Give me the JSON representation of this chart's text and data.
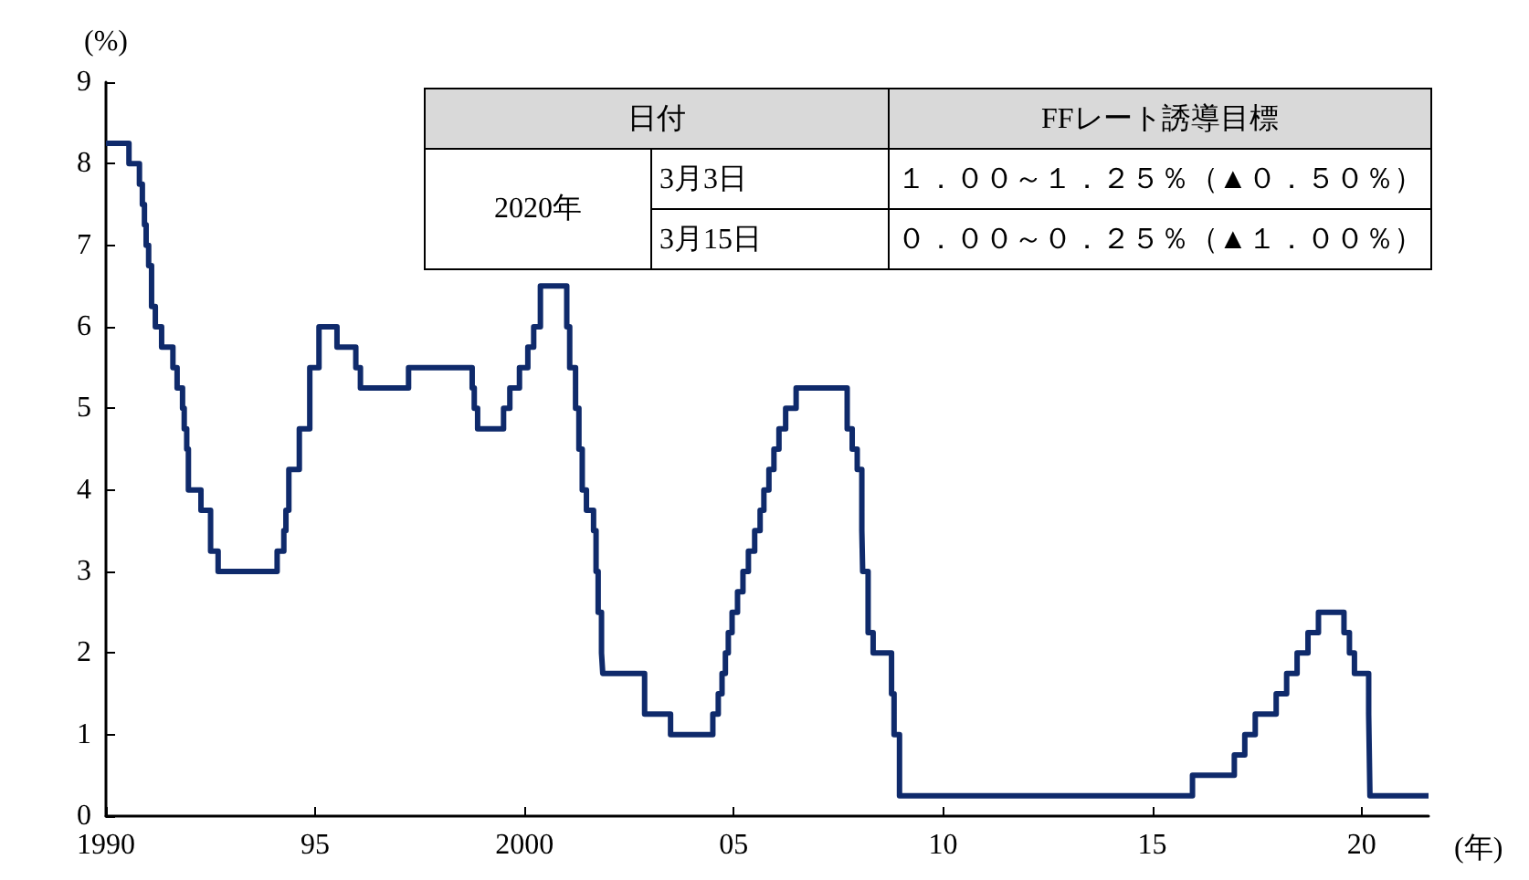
{
  "chart_data": {
    "type": "step",
    "xlabel": "(年)",
    "ylabel": "(%)",
    "annotations": [
      "日付",
      "FFレート誘導目標",
      "2020年",
      "3月3日",
      "１．００～１．２５％（▲０．５０％）",
      "3月15日",
      "０．００～０．２５％（▲１．００％）"
    ],
    "xlim": [
      1990,
      2021.6
    ],
    "xticks": [
      1990,
      {
        "value": 1995,
        "label": "95"
      },
      2000,
      {
        "value": 2005,
        "label": "05"
      },
      {
        "value": 2010,
        "label": "10"
      },
      {
        "value": 2015,
        "label": "15"
      },
      {
        "value": 2020,
        "label": "20"
      }
    ],
    "ylim": [
      0,
      9
    ],
    "yticks": [
      0,
      1,
      2,
      3,
      4,
      5,
      6,
      7,
      8,
      9
    ],
    "grid": false,
    "series": [
      {
        "color": "#0f2a6b",
        "x": [
          1990,
          1990.55,
          1990.8,
          1990.87,
          1990.92,
          1990.96,
          1991.02,
          1991.09,
          1991.18,
          1991.33,
          1991.6,
          1991.7,
          1991.83,
          1991.87,
          1991.93,
          1991.97,
          1992.27,
          1992.5,
          1992.68,
          1994.09,
          1994.25,
          1994.3,
          1994.37,
          1994.62,
          1994.87,
          1995.09,
          1995.52,
          1995.97,
          1996.08,
          1997.23,
          1998.75,
          1998.8,
          1998.88,
          1999.5,
          1999.65,
          1999.88,
          2000.08,
          2000.22,
          2000.38,
          2001.01,
          2001.08,
          2001.22,
          2001.3,
          2001.38,
          2001.48,
          2001.65,
          2001.71,
          2001.76,
          2001.84,
          2001.87,
          2002.87,
          2003.49,
          2004.5,
          2004.63,
          2004.72,
          2004.8,
          2004.87,
          2004.96,
          2005.09,
          2005.22,
          2005.35,
          2005.5,
          2005.63,
          2005.72,
          2005.84,
          2005.96,
          2006.08,
          2006.24,
          2006.49,
          2007.71,
          2007.83,
          2007.95,
          2008.06,
          2008.08,
          2008.21,
          2008.33,
          2008.77,
          2008.83,
          2008.96,
          2015.96,
          2016.96,
          2017.21,
          2017.46,
          2017.96,
          2018.21,
          2018.46,
          2018.72,
          2018.97,
          2019.58,
          2019.71,
          2019.83,
          2020.17,
          2020.2,
          2021.6
        ],
        "values": [
          8.25,
          8,
          7.75,
          7.5,
          7.25,
          7,
          6.75,
          6.25,
          6,
          5.75,
          5.5,
          5.25,
          5,
          4.75,
          4.5,
          4,
          3.75,
          3.25,
          3,
          3.25,
          3.5,
          3.75,
          4.25,
          4.75,
          5.5,
          6,
          5.75,
          5.5,
          5.25,
          5.5,
          5.25,
          5,
          4.75,
          5,
          5.25,
          5.5,
          5.75,
          6,
          6.5,
          6,
          5.5,
          5,
          4.5,
          4,
          3.75,
          3.5,
          3,
          2.5,
          2,
          1.75,
          1.25,
          1,
          1.25,
          1.5,
          1.75,
          2,
          2.25,
          2.5,
          2.75,
          3,
          3.25,
          3.5,
          3.75,
          4,
          4.25,
          4.5,
          4.75,
          5,
          5.25,
          4.75,
          4.5,
          4.25,
          3.5,
          3,
          2.25,
          2,
          1.5,
          1,
          0.25,
          0.5,
          0.75,
          1,
          1.25,
          1.5,
          1.75,
          2,
          2.25,
          2.5,
          2.25,
          2,
          1.75,
          1.25,
          0.25,
          0.25
        ]
      }
    ]
  }
}
